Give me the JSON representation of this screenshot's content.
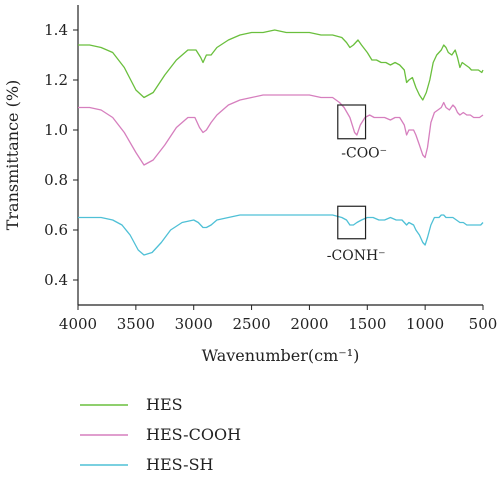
{
  "chart_data": {
    "type": "line",
    "xlabel": "Wavenumber(cm⁻¹)",
    "ylabel": "Transmittance (%)",
    "xlim": [
      4000,
      500
    ],
    "ylim": [
      0.3,
      1.5
    ],
    "x_ticks": [
      "4000",
      "3500",
      "3000",
      "2500",
      "2000",
      "1500",
      "1000",
      "500"
    ],
    "y_ticks": [
      "0.4",
      "0.6",
      "0.8",
      "1.0",
      "1.2",
      "1.4"
    ],
    "legend_position": "bottom-left",
    "grid": false,
    "series": [
      {
        "name": "HES",
        "color": "#6abf3d",
        "points": [
          [
            4000,
            1.34
          ],
          [
            3900,
            1.34
          ],
          [
            3800,
            1.33
          ],
          [
            3700,
            1.31
          ],
          [
            3600,
            1.25
          ],
          [
            3500,
            1.16
          ],
          [
            3430,
            1.13
          ],
          [
            3350,
            1.15
          ],
          [
            3250,
            1.22
          ],
          [
            3150,
            1.28
          ],
          [
            3050,
            1.32
          ],
          [
            2980,
            1.32
          ],
          [
            2940,
            1.29
          ],
          [
            2920,
            1.27
          ],
          [
            2890,
            1.3
          ],
          [
            2850,
            1.3
          ],
          [
            2800,
            1.33
          ],
          [
            2700,
            1.36
          ],
          [
            2600,
            1.38
          ],
          [
            2500,
            1.39
          ],
          [
            2400,
            1.39
          ],
          [
            2300,
            1.4
          ],
          [
            2200,
            1.39
          ],
          [
            2100,
            1.39
          ],
          [
            2000,
            1.39
          ],
          [
            1900,
            1.38
          ],
          [
            1800,
            1.38
          ],
          [
            1720,
            1.37
          ],
          [
            1680,
            1.35
          ],
          [
            1650,
            1.33
          ],
          [
            1620,
            1.34
          ],
          [
            1580,
            1.36
          ],
          [
            1550,
            1.34
          ],
          [
            1500,
            1.31
          ],
          [
            1460,
            1.28
          ],
          [
            1420,
            1.28
          ],
          [
            1380,
            1.27
          ],
          [
            1340,
            1.27
          ],
          [
            1300,
            1.26
          ],
          [
            1260,
            1.27
          ],
          [
            1220,
            1.26
          ],
          [
            1180,
            1.24
          ],
          [
            1160,
            1.19
          ],
          [
            1140,
            1.2
          ],
          [
            1110,
            1.21
          ],
          [
            1080,
            1.17
          ],
          [
            1050,
            1.14
          ],
          [
            1020,
            1.12
          ],
          [
            990,
            1.15
          ],
          [
            960,
            1.2
          ],
          [
            930,
            1.27
          ],
          [
            900,
            1.3
          ],
          [
            860,
            1.32
          ],
          [
            840,
            1.34
          ],
          [
            820,
            1.33
          ],
          [
            800,
            1.31
          ],
          [
            770,
            1.3
          ],
          [
            740,
            1.32
          ],
          [
            720,
            1.29
          ],
          [
            700,
            1.25
          ],
          [
            680,
            1.27
          ],
          [
            650,
            1.26
          ],
          [
            620,
            1.25
          ],
          [
            600,
            1.24
          ],
          [
            570,
            1.24
          ],
          [
            540,
            1.24
          ],
          [
            510,
            1.23
          ],
          [
            500,
            1.24
          ]
        ]
      },
      {
        "name": "HES-COOH",
        "color": "#d67fbe",
        "points": [
          [
            4000,
            1.09
          ],
          [
            3900,
            1.09
          ],
          [
            3800,
            1.08
          ],
          [
            3700,
            1.05
          ],
          [
            3600,
            0.99
          ],
          [
            3500,
            0.91
          ],
          [
            3430,
            0.86
          ],
          [
            3350,
            0.88
          ],
          [
            3250,
            0.94
          ],
          [
            3150,
            1.01
          ],
          [
            3050,
            1.05
          ],
          [
            2990,
            1.05
          ],
          [
            2950,
            1.01
          ],
          [
            2920,
            0.99
          ],
          [
            2890,
            1.0
          ],
          [
            2850,
            1.03
          ],
          [
            2800,
            1.06
          ],
          [
            2700,
            1.1
          ],
          [
            2600,
            1.12
          ],
          [
            2500,
            1.13
          ],
          [
            2400,
            1.14
          ],
          [
            2300,
            1.14
          ],
          [
            2200,
            1.14
          ],
          [
            2100,
            1.14
          ],
          [
            2000,
            1.14
          ],
          [
            1900,
            1.13
          ],
          [
            1800,
            1.13
          ],
          [
            1740,
            1.11
          ],
          [
            1700,
            1.09
          ],
          [
            1650,
            1.05
          ],
          [
            1610,
            0.99
          ],
          [
            1590,
            0.98
          ],
          [
            1560,
            1.02
          ],
          [
            1520,
            1.05
          ],
          [
            1480,
            1.06
          ],
          [
            1440,
            1.05
          ],
          [
            1400,
            1.05
          ],
          [
            1350,
            1.05
          ],
          [
            1300,
            1.04
          ],
          [
            1260,
            1.05
          ],
          [
            1220,
            1.05
          ],
          [
            1180,
            1.02
          ],
          [
            1160,
            0.98
          ],
          [
            1140,
            1.0
          ],
          [
            1100,
            1.0
          ],
          [
            1080,
            0.98
          ],
          [
            1050,
            0.94
          ],
          [
            1020,
            0.9
          ],
          [
            1000,
            0.89
          ],
          [
            980,
            0.93
          ],
          [
            950,
            1.03
          ],
          [
            920,
            1.07
          ],
          [
            890,
            1.08
          ],
          [
            860,
            1.09
          ],
          [
            840,
            1.11
          ],
          [
            820,
            1.09
          ],
          [
            790,
            1.08
          ],
          [
            760,
            1.1
          ],
          [
            740,
            1.09
          ],
          [
            720,
            1.07
          ],
          [
            700,
            1.06
          ],
          [
            670,
            1.07
          ],
          [
            640,
            1.06
          ],
          [
            610,
            1.06
          ],
          [
            580,
            1.05
          ],
          [
            560,
            1.05
          ],
          [
            530,
            1.05
          ],
          [
            500,
            1.06
          ]
        ]
      },
      {
        "name": "HES-SH",
        "color": "#4fc0d6",
        "points": [
          [
            4000,
            0.65
          ],
          [
            3900,
            0.65
          ],
          [
            3800,
            0.65
          ],
          [
            3700,
            0.64
          ],
          [
            3620,
            0.62
          ],
          [
            3550,
            0.58
          ],
          [
            3480,
            0.52
          ],
          [
            3430,
            0.5
          ],
          [
            3360,
            0.51
          ],
          [
            3280,
            0.55
          ],
          [
            3200,
            0.6
          ],
          [
            3100,
            0.63
          ],
          [
            3000,
            0.64
          ],
          [
            2960,
            0.63
          ],
          [
            2920,
            0.61
          ],
          [
            2890,
            0.61
          ],
          [
            2850,
            0.62
          ],
          [
            2800,
            0.64
          ],
          [
            2700,
            0.65
          ],
          [
            2600,
            0.66
          ],
          [
            2500,
            0.66
          ],
          [
            2400,
            0.66
          ],
          [
            2300,
            0.66
          ],
          [
            2200,
            0.66
          ],
          [
            2100,
            0.66
          ],
          [
            2000,
            0.66
          ],
          [
            1900,
            0.66
          ],
          [
            1800,
            0.66
          ],
          [
            1720,
            0.65
          ],
          [
            1680,
            0.64
          ],
          [
            1650,
            0.62
          ],
          [
            1620,
            0.62
          ],
          [
            1590,
            0.63
          ],
          [
            1550,
            0.64
          ],
          [
            1500,
            0.65
          ],
          [
            1450,
            0.65
          ],
          [
            1400,
            0.64
          ],
          [
            1350,
            0.64
          ],
          [
            1300,
            0.65
          ],
          [
            1250,
            0.64
          ],
          [
            1200,
            0.64
          ],
          [
            1160,
            0.62
          ],
          [
            1140,
            0.63
          ],
          [
            1100,
            0.62
          ],
          [
            1080,
            0.6
          ],
          [
            1050,
            0.58
          ],
          [
            1020,
            0.55
          ],
          [
            1000,
            0.54
          ],
          [
            980,
            0.57
          ],
          [
            950,
            0.62
          ],
          [
            920,
            0.65
          ],
          [
            880,
            0.65
          ],
          [
            860,
            0.66
          ],
          [
            840,
            0.66
          ],
          [
            820,
            0.65
          ],
          [
            790,
            0.65
          ],
          [
            760,
            0.65
          ],
          [
            730,
            0.64
          ],
          [
            700,
            0.63
          ],
          [
            670,
            0.63
          ],
          [
            640,
            0.62
          ],
          [
            610,
            0.62
          ],
          [
            580,
            0.62
          ],
          [
            550,
            0.62
          ],
          [
            520,
            0.62
          ],
          [
            500,
            0.63
          ]
        ]
      }
    ],
    "annotations": [
      {
        "label": "-COO⁻",
        "box_x": [
          1755,
          1515
        ],
        "box_y": [
          0.965,
          1.1
        ],
        "text_x": 1725,
        "text_y": 0.89
      },
      {
        "label": "-CONH⁻",
        "box_x": [
          1755,
          1515
        ],
        "box_y": [
          0.565,
          0.695
        ],
        "text_x": 1850,
        "text_y": 0.48
      }
    ]
  }
}
